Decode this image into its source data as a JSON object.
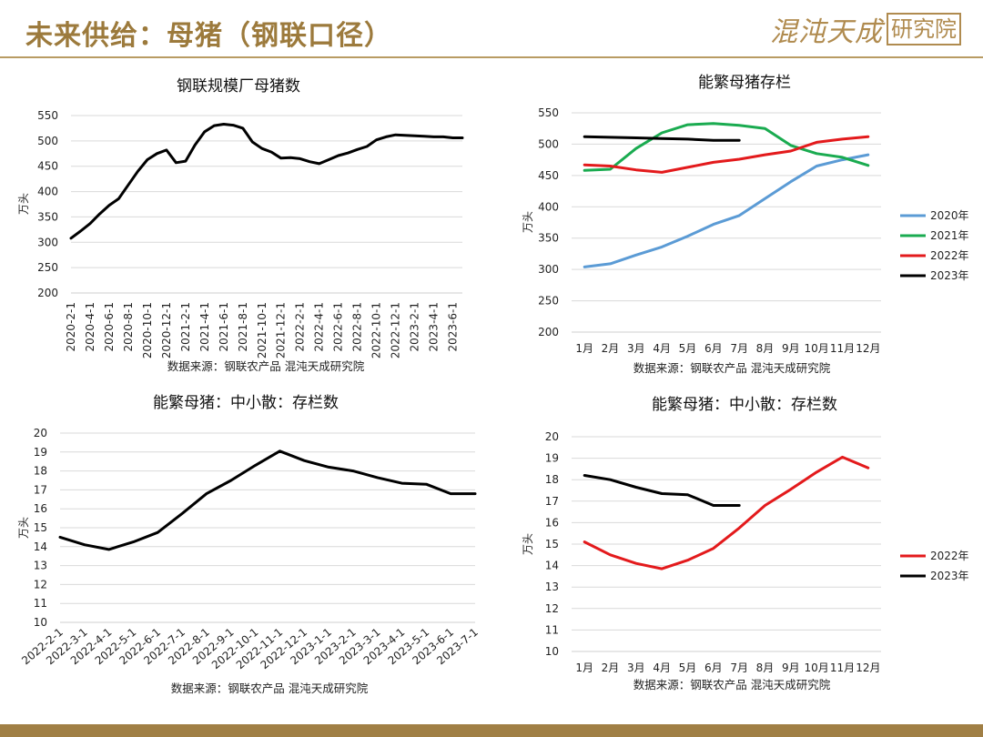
{
  "header": {
    "title": "未来供给：母猪（钢联口径）",
    "logo_main": "混沌天成",
    "logo_box": "研究院"
  },
  "colors": {
    "gold": "#9c7a3c",
    "s2020": "#5b9bd5",
    "s2021": "#1aab50",
    "s2022": "#e31a1c",
    "s2023": "#000000"
  },
  "chart_data": [
    {
      "type": "line",
      "title": "钢联规模厂母猪数",
      "ylabel": "万头",
      "source": "数据来源：钢联农产品 混沌天成研究院",
      "ylim": [
        200,
        550
      ],
      "yticks": [
        200,
        250,
        300,
        350,
        400,
        450,
        500,
        550
      ],
      "grid": true,
      "legend": "none",
      "x_tick_labels": [
        "2020-2-1",
        "2020-4-1",
        "2020-6-1",
        "2020-8-1",
        "2020-10-1",
        "2020-12-1",
        "2021-2-1",
        "2021-4-1",
        "2021-6-1",
        "2021-8-1",
        "2021-10-1",
        "2021-12-1",
        "2022-2-1",
        "2022-4-1",
        "2022-6-1",
        "2022-8-1",
        "2022-10-1",
        "2022-12-1",
        "2023-2-1",
        "2023-4-1",
        "2023-6-1"
      ],
      "x": [
        "2020-2-1",
        "2020-3-1",
        "2020-4-1",
        "2020-5-1",
        "2020-6-1",
        "2020-7-1",
        "2020-8-1",
        "2020-9-1",
        "2020-10-1",
        "2020-11-1",
        "2020-12-1",
        "2021-1-1",
        "2021-2-1",
        "2021-3-1",
        "2021-4-1",
        "2021-5-1",
        "2021-6-1",
        "2021-7-1",
        "2021-8-1",
        "2021-9-1",
        "2021-10-1",
        "2021-11-1",
        "2021-12-1",
        "2022-1-1",
        "2022-2-1",
        "2022-3-1",
        "2022-4-1",
        "2022-5-1",
        "2022-6-1",
        "2022-7-1",
        "2022-8-1",
        "2022-9-1",
        "2022-10-1",
        "2022-11-1",
        "2022-12-1",
        "2023-1-1",
        "2023-2-1",
        "2023-3-1",
        "2023-4-1",
        "2023-5-1",
        "2023-6-1",
        "2023-7-1"
      ],
      "series": [
        {
          "color": "#000000",
          "values": [
            308,
            322,
            337,
            356,
            373,
            386,
            413,
            440,
            463,
            475,
            482,
            457,
            460,
            492,
            518,
            530,
            533,
            531,
            525,
            498,
            485,
            478,
            466,
            467,
            465,
            459,
            455,
            463,
            471,
            476,
            483,
            489,
            502,
            508,
            512,
            511,
            510,
            509,
            508,
            508,
            506,
            506
          ]
        }
      ]
    },
    {
      "type": "line",
      "title": "能繁母猪存栏",
      "ylabel": "万头",
      "source": "数据来源：钢联农产品 混沌天成研究院",
      "ylim": [
        200,
        550
      ],
      "yticks": [
        200,
        250,
        300,
        350,
        400,
        450,
        500,
        550
      ],
      "grid": true,
      "legend": "right",
      "categories": [
        "1月",
        "2月",
        "3月",
        "4月",
        "5月",
        "6月",
        "7月",
        "8月",
        "9月",
        "10月",
        "11月",
        "12月"
      ],
      "series": [
        {
          "name": "2020年",
          "color": "#5b9bd5",
          "values": [
            304,
            309,
            323,
            336,
            353,
            372,
            386,
            413,
            440,
            465,
            475,
            483
          ]
        },
        {
          "name": "2021年",
          "color": "#1aab50",
          "values": [
            458,
            460,
            493,
            518,
            531,
            533,
            530,
            525,
            498,
            485,
            479,
            466
          ]
        },
        {
          "name": "2022年",
          "color": "#e31a1c",
          "values": [
            467,
            465,
            459,
            455,
            463,
            471,
            476,
            483,
            489,
            503,
            508,
            512
          ]
        },
        {
          "name": "2023年",
          "color": "#000000",
          "values": [
            512,
            511,
            510,
            509,
            508,
            506,
            506,
            null,
            null,
            null,
            null,
            null
          ]
        }
      ]
    },
    {
      "type": "line",
      "title": "能繁母猪：中小散：存栏数",
      "ylabel": "万头",
      "source": "数据来源：钢联农产品 混沌天成研究院",
      "ylim": [
        10,
        20
      ],
      "yticks": [
        10,
        11,
        12,
        13,
        14,
        15,
        16,
        17,
        18,
        19,
        20
      ],
      "grid": true,
      "legend": "none",
      "categories": [
        "2022-2-1",
        "2022-3-1",
        "2022-4-1",
        "2022-5-1",
        "2022-6-1",
        "2022-7-1",
        "2022-8-1",
        "2022-9-1",
        "2022-10-1",
        "2022-11-1",
        "2022-12-1",
        "2023-1-1",
        "2023-2-1",
        "2023-3-1",
        "2023-4-1",
        "2023-5-1",
        "2023-6-1",
        "2023-7-1"
      ],
      "series": [
        {
          "color": "#000000",
          "values": [
            14.5,
            14.1,
            13.85,
            14.25,
            14.75,
            15.75,
            16.8,
            17.5,
            18.3,
            19.05,
            18.55,
            18.2,
            18.0,
            17.65,
            17.35,
            17.3,
            16.8,
            16.8
          ]
        }
      ]
    },
    {
      "type": "line",
      "title": "能繁母猪：中小散：存栏数",
      "ylabel": "万头",
      "source": "数据来源：钢联农产品 混沌天成研究院",
      "ylim": [
        10,
        20
      ],
      "yticks": [
        10,
        11,
        12,
        13,
        14,
        15,
        16,
        17,
        18,
        19,
        20
      ],
      "grid": true,
      "legend": "right",
      "categories": [
        "1月",
        "2月",
        "3月",
        "4月",
        "5月",
        "6月",
        "7月",
        "8月",
        "9月",
        "10月",
        "11月",
        "12月"
      ],
      "series": [
        {
          "name": "2022年",
          "color": "#e31a1c",
          "values": [
            15.1,
            14.5,
            14.1,
            13.85,
            14.25,
            14.8,
            15.75,
            16.8,
            17.55,
            18.35,
            19.05,
            18.55
          ]
        },
        {
          "name": "2023年",
          "color": "#000000",
          "values": [
            18.2,
            18.0,
            17.65,
            17.35,
            17.3,
            16.8,
            16.8,
            null,
            null,
            null,
            null,
            null
          ]
        }
      ]
    }
  ]
}
